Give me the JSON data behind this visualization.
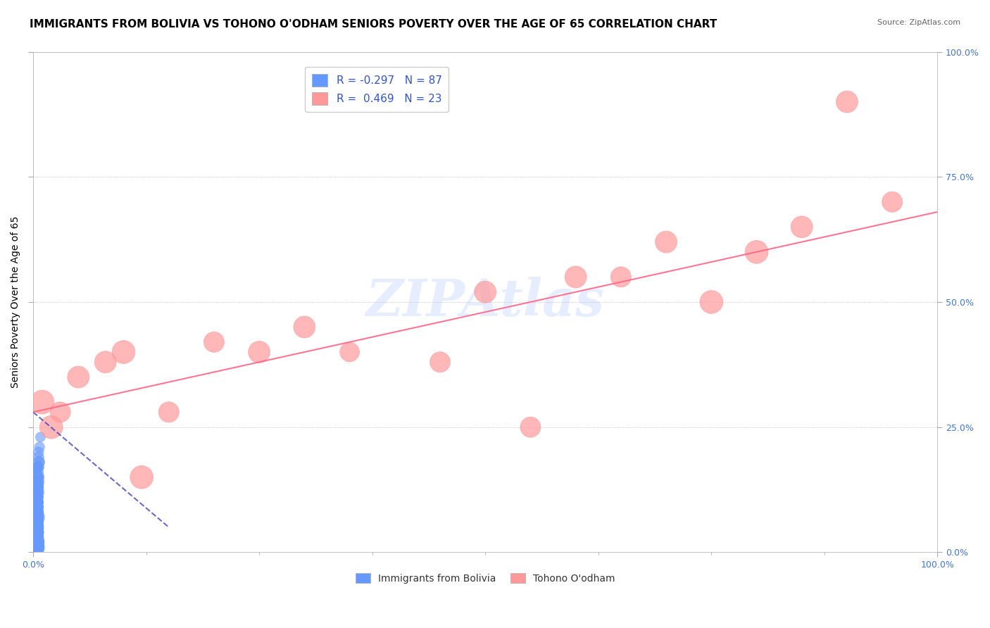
{
  "title": "IMMIGRANTS FROM BOLIVIA VS TOHONO O'ODHAM SENIORS POVERTY OVER THE AGE OF 65 CORRELATION CHART",
  "source": "Source: ZipAtlas.com",
  "ylabel": "Seniors Poverty Over the Age of 65",
  "xlabel": "",
  "xlim": [
    0,
    1.0
  ],
  "ylim": [
    0,
    1.0
  ],
  "xtick_labels": [
    "0.0%",
    "100.0%"
  ],
  "ytick_labels": [
    "0.0%",
    "25.0%",
    "50.0%",
    "75.0%",
    "100.0%"
  ],
  "ytick_values": [
    0.0,
    0.25,
    0.5,
    0.75,
    1.0
  ],
  "legend_R1": "-0.297",
  "legend_N1": "87",
  "legend_R2": "0.469",
  "legend_N2": "23",
  "blue_color": "#6699FF",
  "pink_color": "#FF9999",
  "trendline_blue_color": "#4444BB",
  "trendline_pink_color": "#FF6688",
  "watermark_text": "ZIPAtlas",
  "watermark_color": "#CCDDFF",
  "title_fontsize": 11,
  "axis_label_fontsize": 10,
  "tick_fontsize": 9,
  "bolivia_x": [
    0.001,
    0.002,
    0.003,
    0.001,
    0.004,
    0.002,
    0.005,
    0.003,
    0.001,
    0.006,
    0.002,
    0.003,
    0.004,
    0.001,
    0.002,
    0.003,
    0.004,
    0.005,
    0.001,
    0.002,
    0.003,
    0.001,
    0.002,
    0.003,
    0.004,
    0.005,
    0.006,
    0.007,
    0.008,
    0.002,
    0.003,
    0.004,
    0.001,
    0.002,
    0.003,
    0.001,
    0.002,
    0.003,
    0.004,
    0.005,
    0.006,
    0.003,
    0.004,
    0.002,
    0.001,
    0.003,
    0.002,
    0.001,
    0.004,
    0.005,
    0.002,
    0.003,
    0.001,
    0.002,
    0.004,
    0.003,
    0.005,
    0.006,
    0.001,
    0.002,
    0.003,
    0.004,
    0.002,
    0.001,
    0.003,
    0.004,
    0.002,
    0.001,
    0.003,
    0.002,
    0.004,
    0.005,
    0.001,
    0.002,
    0.003,
    0.006,
    0.007,
    0.002,
    0.003,
    0.004,
    0.001,
    0.002,
    0.003,
    0.004,
    0.005,
    0.001,
    0.002
  ],
  "bolivia_y": [
    0.0,
    0.05,
    0.1,
    0.08,
    0.12,
    0.04,
    0.15,
    0.07,
    0.02,
    0.18,
    0.06,
    0.09,
    0.13,
    0.03,
    0.07,
    0.11,
    0.14,
    0.16,
    0.01,
    0.04,
    0.08,
    0.05,
    0.09,
    0.12,
    0.15,
    0.17,
    0.19,
    0.21,
    0.23,
    0.06,
    0.1,
    0.14,
    0.02,
    0.06,
    0.1,
    0.03,
    0.07,
    0.11,
    0.14,
    0.17,
    0.2,
    0.09,
    0.13,
    0.05,
    0.01,
    0.08,
    0.04,
    0.02,
    0.11,
    0.15,
    0.05,
    0.08,
    0.02,
    0.05,
    0.1,
    0.07,
    0.13,
    0.17,
    0.02,
    0.05,
    0.08,
    0.12,
    0.06,
    0.03,
    0.09,
    0.13,
    0.05,
    0.02,
    0.08,
    0.04,
    0.1,
    0.13,
    0.02,
    0.06,
    0.09,
    0.14,
    0.18,
    0.04,
    0.07,
    0.11,
    0.01,
    0.04,
    0.08,
    0.12,
    0.15,
    0.02,
    0.06
  ],
  "bolivia_sizes": [
    30,
    25,
    20,
    35,
    22,
    28,
    18,
    32,
    40,
    15,
    27,
    23,
    19,
    38,
    26,
    21,
    17,
    14,
    45,
    31,
    24,
    36,
    22,
    18,
    16,
    13,
    12,
    11,
    10,
    28,
    20,
    16,
    42,
    30,
    22,
    38,
    27,
    20,
    16,
    13,
    11,
    22,
    17,
    29,
    44,
    23,
    31,
    41,
    18,
    14,
    30,
    23,
    43,
    32,
    19,
    25,
    15,
    12,
    41,
    31,
    23,
    17,
    28,
    38,
    22,
    16,
    29,
    40,
    23,
    32,
    18,
    14,
    41,
    30,
    22,
    13,
    11,
    31,
    23,
    17,
    42,
    31,
    23,
    17,
    13,
    40,
    29
  ],
  "tohono_x": [
    0.01,
    0.05,
    0.1,
    0.2,
    0.35,
    0.5,
    0.65,
    0.8,
    0.9,
    0.95,
    0.02,
    0.08,
    0.15,
    0.3,
    0.45,
    0.6,
    0.75,
    0.85,
    0.03,
    0.12,
    0.25,
    0.55,
    0.7
  ],
  "tohono_y": [
    0.3,
    0.35,
    0.4,
    0.42,
    0.4,
    0.52,
    0.55,
    0.6,
    0.9,
    0.7,
    0.25,
    0.38,
    0.28,
    0.45,
    0.38,
    0.55,
    0.5,
    0.65,
    0.28,
    0.15,
    0.4,
    0.25,
    0.62
  ],
  "tohono_sizes": [
    30,
    25,
    28,
    22,
    20,
    25,
    22,
    28,
    25,
    22,
    28,
    25,
    22,
    25,
    22,
    25,
    28,
    25,
    22,
    28,
    25,
    22,
    25
  ]
}
